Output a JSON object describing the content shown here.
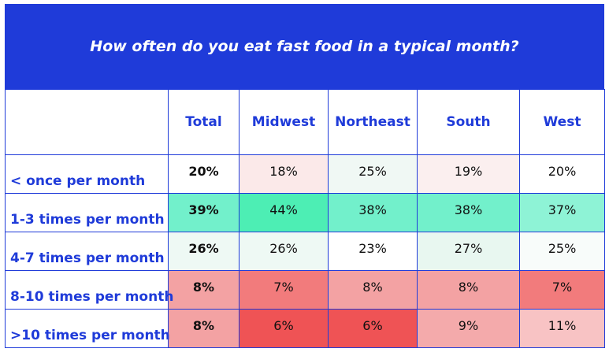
{
  "chart_data": {
    "type": "table",
    "title": "How often do you eat fast food in a typical month?",
    "columns": [
      "Total",
      "Midwest",
      "Northeast",
      "South",
      "West"
    ],
    "rows": [
      {
        "label": "< once per month",
        "values": [
          "20%",
          "18%",
          "25%",
          "19%",
          "20%"
        ],
        "colors": [
          "#ffffff",
          "#fbe9e9",
          "#f0f8f4",
          "#fbefef",
          "#ffffff"
        ]
      },
      {
        "label": "1-3 times per month",
        "values": [
          "39%",
          "44%",
          "38%",
          "38%",
          "37%"
        ],
        "colors": [
          "#72f0cb",
          "#4deeb4",
          "#72f0cb",
          "#72f0cb",
          "#8ef3d6"
        ]
      },
      {
        "label": "4-7 times per month",
        "values": [
          "26%",
          "26%",
          "23%",
          "27%",
          "25%"
        ],
        "colors": [
          "#eef9f4",
          "#eef9f4",
          "#ffffff",
          "#e8f7f0",
          "#f8fcfa"
        ]
      },
      {
        "label": "8-10 times per month",
        "values": [
          "8%",
          "7%",
          "8%",
          "8%",
          "7%"
        ],
        "colors": [
          "#f3a2a3",
          "#f27b7c",
          "#f3a2a3",
          "#f3a2a3",
          "#f27b7c"
        ]
      },
      {
        "label": ">10 times per month",
        "values": [
          "8%",
          "6%",
          "6%",
          "9%",
          "11%"
        ],
        "colors": [
          "#f3a2a3",
          "#ef5355",
          "#ef5355",
          "#f4aaab",
          "#f8c3c4"
        ]
      }
    ]
  }
}
